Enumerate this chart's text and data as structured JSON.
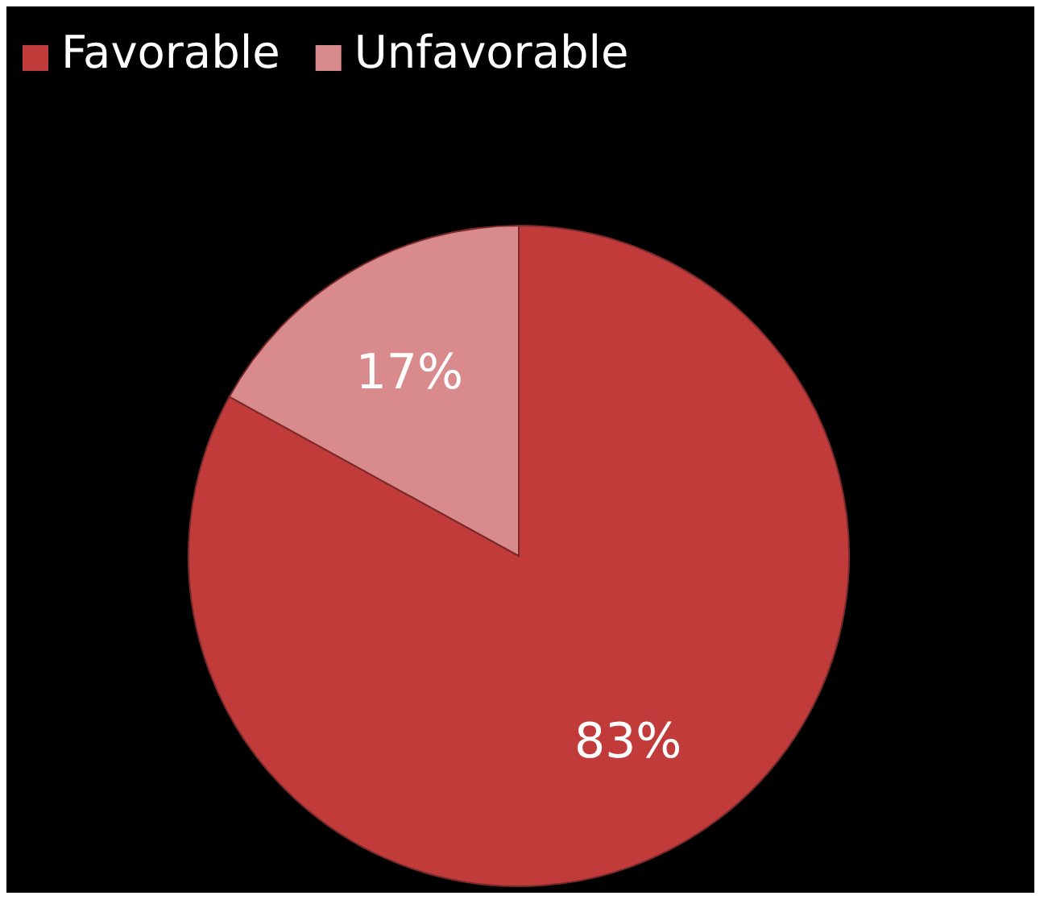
{
  "chart_data": {
    "type": "pie",
    "categories": [
      "Favorable",
      "Unfavorable"
    ],
    "values": [
      83,
      17
    ],
    "colors": [
      "#c23b3b",
      "#d98a8c"
    ],
    "value_labels": [
      "83%",
      "17%"
    ],
    "legend": "top left"
  }
}
